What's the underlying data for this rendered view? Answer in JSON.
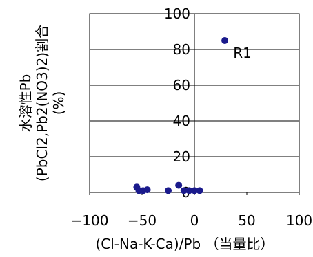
{
  "chart_data": {
    "type": "scatter",
    "xlabel": "(Cl-Na-K-Ca)/Pb （当量比）",
    "ylabel_lines": [
      "水溶性Pb",
      "(PbCl2,Pb2(NO3)2)割合",
      "(%)"
    ],
    "xlim": [
      -100,
      100
    ],
    "ylim": [
      0,
      100
    ],
    "x_ticks": [
      -100,
      -50,
      0,
      50,
      100
    ],
    "x_tick_labels": [
      "−100",
      "−50",
      "0",
      "50",
      "100"
    ],
    "y_ticks": [
      0,
      20,
      40,
      60,
      80,
      100
    ],
    "y_tick_labels": [
      "0",
      "20",
      "40",
      "60",
      "80",
      "100"
    ],
    "grid": "horizontal",
    "marker_color": "#1a1a8c",
    "points": [
      {
        "x": 29,
        "y": 85
      },
      {
        "x": -55,
        "y": 3
      },
      {
        "x": -53,
        "y": 1
      },
      {
        "x": -49,
        "y": 1
      },
      {
        "x": -45,
        "y": 1.5
      },
      {
        "x": -25,
        "y": 1
      },
      {
        "x": -15,
        "y": 4
      },
      {
        "x": -10,
        "y": 1
      },
      {
        "x": -5,
        "y": 1
      },
      {
        "x": 0,
        "y": 1
      },
      {
        "x": 5,
        "y": 1
      }
    ],
    "annotations": [
      {
        "label": "R1",
        "x": 37,
        "y": 78
      }
    ]
  }
}
